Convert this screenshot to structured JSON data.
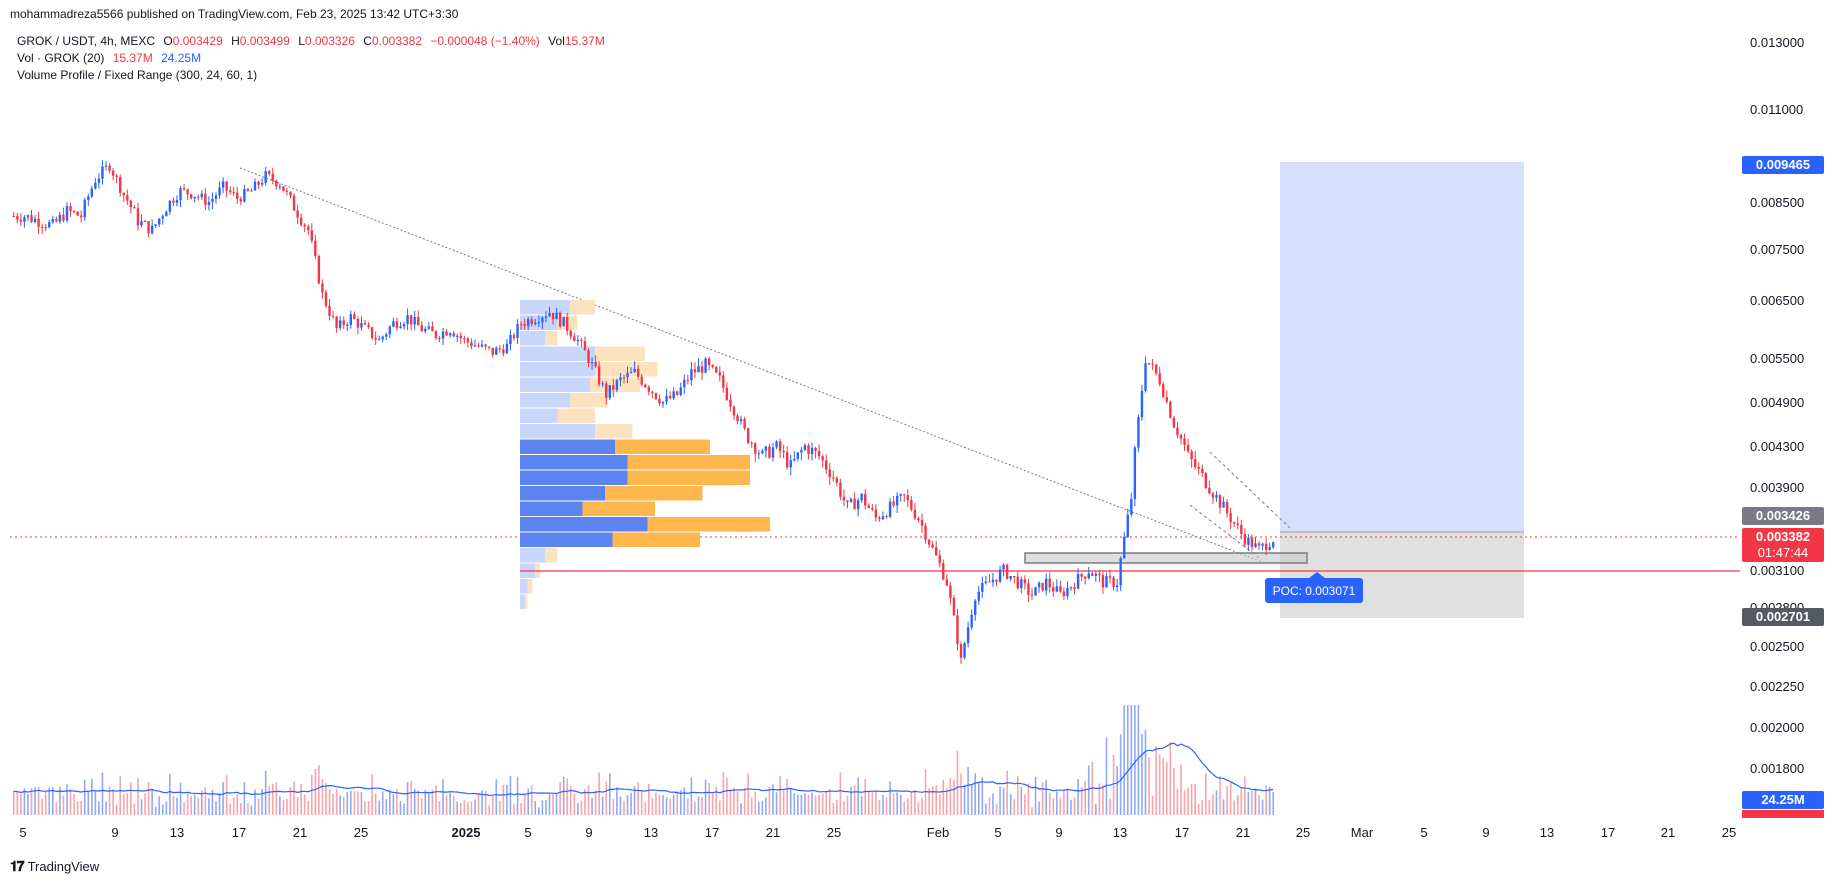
{
  "header": {
    "published_by": "mohammadreza5566 published on TradingView.com, Feb 23, 2025 13:42 UTC+3:30"
  },
  "legend": {
    "symbol": "GROK / USDT, 4h, MEXC",
    "o_label": "O",
    "o_value": "0.003429",
    "h_label": "H",
    "h_value": "0.003499",
    "l_label": "L",
    "l_value": "0.003326",
    "c_label": "C",
    "c_value": "0.003382",
    "change": "−0.000048 (−1.40%)",
    "vol_label": "Vol",
    "vol_value": "15.37M",
    "vol_indicator": "Vol · GROK (20)",
    "vol_ind_value1": "15.37M",
    "vol_ind_value2": "24.25M",
    "volume_profile": "Volume Profile / Fixed Range (300, 24, 60, 1)"
  },
  "colors": {
    "up": "#2962ff",
    "down": "#f23645",
    "profile_up": "#5b84f0",
    "profile_down": "#ffb74d",
    "profile_up_light": "#c9d6fb",
    "profile_down_light": "#fde2c0",
    "target_zone": "#d6e0fd",
    "stop_zone": "#e0e0e0",
    "poc_line": "#f23645"
  },
  "chart_data": {
    "type": "candlestick",
    "symbol": "GROK / USDT",
    "timeframe": "4h",
    "exchange": "MEXC",
    "y_ticks": [
      "0.013000",
      "0.011000",
      "0.008500",
      "0.007500",
      "0.006500",
      "0.005500",
      "0.004900",
      "0.004300",
      "0.003900",
      "0.003100",
      "0.002800",
      "0.002500",
      "0.002250",
      "0.002000",
      "0.001800"
    ],
    "x_ticks": [
      "5",
      "9",
      "13",
      "17",
      "21",
      "25",
      "2025",
      "5",
      "9",
      "13",
      "17",
      "21",
      "25",
      "Feb",
      "5",
      "9",
      "13",
      "17",
      "21",
      "25",
      "Mar",
      "5",
      "9",
      "13",
      "17",
      "21",
      "25"
    ],
    "price_close": [
      0.0082,
      0.0081,
      0.008,
      0.0083,
      0.0082,
      0.0091,
      0.0095,
      0.0087,
      0.0081,
      0.0079,
      0.0084,
      0.0088,
      0.0087,
      0.0085,
      0.0089,
      0.0086,
      0.0088,
      0.0092,
      0.009,
      0.0084,
      0.0079,
      0.0066,
      0.006,
      0.0062,
      0.006,
      0.0058,
      0.0061,
      0.0062,
      0.006,
      0.0059,
      0.006,
      0.0058,
      0.0057,
      0.0056,
      0.0057,
      0.0061,
      0.0062,
      0.0063,
      0.0061,
      0.0058,
      0.0054,
      0.005,
      0.0052,
      0.0053,
      0.0051,
      0.0049,
      0.005,
      0.0053,
      0.0054,
      0.0052,
      0.0048,
      0.0044,
      0.0042,
      0.0043,
      0.0041,
      0.0043,
      0.0042,
      0.004,
      0.0037,
      0.0038,
      0.0036,
      0.0037,
      0.0038,
      0.0036,
      0.0033,
      0.003,
      0.0024,
      0.0029,
      0.003,
      0.0031,
      0.003,
      0.0029,
      0.003,
      0.0029,
      0.003,
      0.0031,
      0.003,
      0.003,
      0.0038,
      0.0055,
      0.0052,
      0.0046,
      0.0042,
      0.004,
      0.0038,
      0.0036,
      0.0034,
      0.0033,
      0.0034
    ],
    "current_price": "0.003382",
    "countdown": "01:47:44",
    "target_price": "0.009465",
    "entry_price": "0.003426",
    "stop_price": "0.002701",
    "poc_label": "POC: 0.003071",
    "volume_last": "24.25M",
    "volume_cut": "15.37M",
    "volume_profile": {
      "rows": [
        {
          "up": 0.2,
          "down": 0.1,
          "light": true
        },
        {
          "up": 0.15,
          "down": 0.08,
          "light": true
        },
        {
          "up": 0.1,
          "down": 0.05,
          "light": true
        },
        {
          "up": 0.3,
          "down": 0.2,
          "light": true
        },
        {
          "up": 0.3,
          "down": 0.25,
          "light": true
        },
        {
          "up": 0.28,
          "down": 0.2,
          "light": true
        },
        {
          "up": 0.2,
          "down": 0.15,
          "light": true
        },
        {
          "up": 0.15,
          "down": 0.15,
          "light": true
        },
        {
          "up": 0.3,
          "down": 0.15,
          "light": true
        },
        {
          "up": 0.38,
          "down": 0.38,
          "light": false
        },
        {
          "up": 0.43,
          "down": 0.49,
          "light": false
        },
        {
          "up": 0.43,
          "down": 0.49,
          "light": false
        },
        {
          "up": 0.34,
          "down": 0.39,
          "light": false
        },
        {
          "up": 0.25,
          "down": 0.29,
          "light": false
        },
        {
          "up": 0.51,
          "down": 0.49,
          "light": false
        },
        {
          "up": 0.37,
          "down": 0.35,
          "light": false
        },
        {
          "up": 0.1,
          "down": 0.05,
          "light": true
        },
        {
          "up": 0.06,
          "down": 0.02,
          "light": true
        },
        {
          "up": 0.03,
          "down": 0.02,
          "light": true
        },
        {
          "up": 0.02,
          "down": 0.01,
          "light": true
        }
      ]
    }
  },
  "footer": {
    "brand": "TradingView"
  }
}
